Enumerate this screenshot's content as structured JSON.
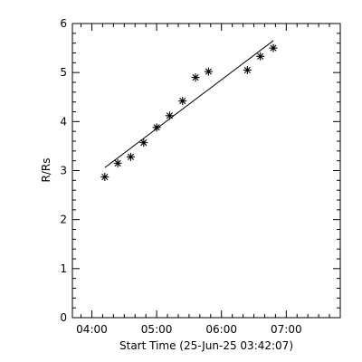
{
  "chart_data": {
    "type": "scatter",
    "title": "",
    "xlabel": "Start Time (25-Jun-25 03:42:07)",
    "ylabel": "R/Rs",
    "x_type": "time",
    "xlim": [
      "03:42",
      "07:50"
    ],
    "ylim": [
      0,
      6
    ],
    "x_ticks": [
      "04:00",
      "05:00",
      "06:00",
      "07:00"
    ],
    "y_ticks": [
      "0",
      "1",
      "2",
      "3",
      "4",
      "5",
      "6"
    ],
    "grid": false,
    "marker": "asterisk",
    "points": [
      {
        "x": "04:12",
        "y": 2.87
      },
      {
        "x": "04:24",
        "y": 3.15
      },
      {
        "x": "04:36",
        "y": 3.28
      },
      {
        "x": "04:48",
        "y": 3.57
      },
      {
        "x": "05:00",
        "y": 3.88
      },
      {
        "x": "05:12",
        "y": 4.12
      },
      {
        "x": "05:24",
        "y": 4.42
      },
      {
        "x": "05:36",
        "y": 4.9
      },
      {
        "x": "05:48",
        "y": 5.02
      },
      {
        "x": "06:24",
        "y": 5.05
      },
      {
        "x": "06:36",
        "y": 5.33
      },
      {
        "x": "06:48",
        "y": 5.5
      }
    ],
    "fit_line": {
      "x": [
        "04:12",
        "06:48"
      ],
      "y": [
        3.06,
        5.65
      ]
    },
    "colors": {
      "foreground": "#000000",
      "background": "#ffffff"
    }
  }
}
